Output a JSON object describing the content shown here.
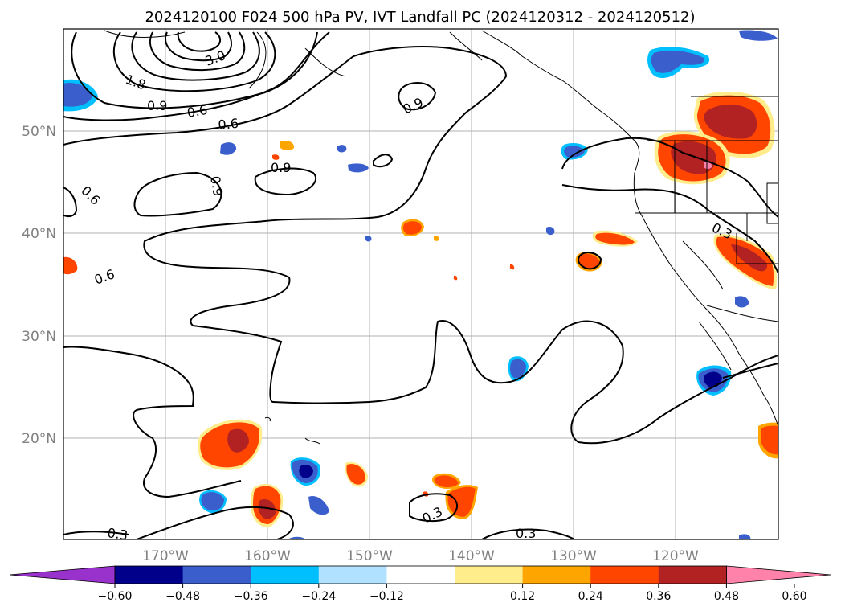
{
  "title": "2024120100 F024 500 hPa PV, IVT Landfall PC (2024120312 - 2024120512)",
  "axes": {
    "lat_labels": [
      "50°N",
      "40°N",
      "30°N",
      "20°N"
    ],
    "lon_labels": [
      "170°W",
      "160°W",
      "150°W",
      "140°W",
      "130°W",
      "120°W"
    ]
  },
  "colorbar": {
    "tick_labels": [
      "−0.60",
      "−0.48",
      "−0.36",
      "−0.24",
      "−0.12",
      "0.12",
      "0.24",
      "0.36",
      "0.48",
      "0.60"
    ],
    "colors": [
      "#9932cc",
      "#00008b",
      "#3a5fcd",
      "#00bfff",
      "#b0e2ff",
      "#ffffff",
      "#ffec8b",
      "#ffa500",
      "#ff4500",
      "#b22222",
      "#ff82ab"
    ]
  },
  "contour_labels": [
    "3.0",
    "1.8",
    "0.9",
    "0.6",
    "0.6",
    "0.9",
    "0.9",
    "0.9",
    "0.6",
    "0.6",
    "0.3",
    "0.3",
    "0.3",
    "0.3"
  ],
  "palette": {
    "neg_dark": "#00008b",
    "neg_mid": "#3a5fcd",
    "neg_light": "#00bfff",
    "neg_pale": "#b0e2ff",
    "pos_pale": "#ffec8b",
    "pos_light": "#ffa500",
    "pos_mid": "#ff4500",
    "pos_dark": "#b22222",
    "pos_max": "#ff82ab"
  }
}
